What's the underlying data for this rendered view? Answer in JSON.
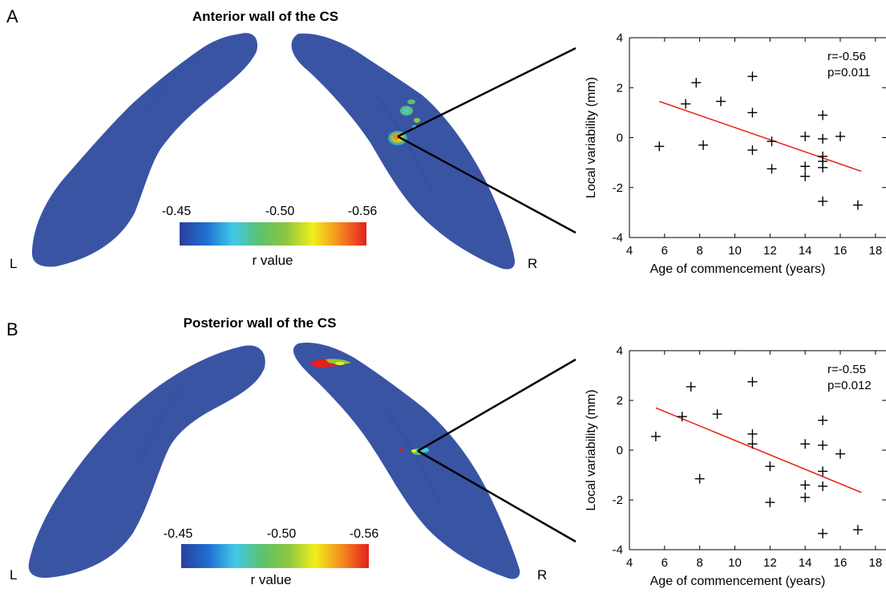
{
  "panels": [
    {
      "letter": "A",
      "title": "Anterior wall of the CS",
      "left_label": "L",
      "right_label": "R",
      "colorbar": {
        "ticks": [
          "-0.45",
          "-0.50",
          "-0.56"
        ],
        "label": "r value"
      }
    },
    {
      "letter": "B",
      "title": "Posterior wall of the CS",
      "left_label": "L",
      "right_label": "R",
      "colorbar": {
        "ticks": [
          "-0.45",
          "-0.50",
          "-0.56"
        ],
        "label": "r value"
      }
    }
  ],
  "colors": {
    "surface": "#3a54a4",
    "fit_line": "#e8291c",
    "colorbar": [
      "#2b3f9e",
      "#1f6fd0",
      "#41c8e8",
      "#5cc26e",
      "#8cc63f",
      "#f1ef1a",
      "#f58a1f",
      "#e3201e"
    ]
  },
  "chart_data": [
    {
      "type": "scatter",
      "title": "",
      "xlabel": "Age of commencement (years)",
      "ylabel": "Local variability (mm)",
      "xlim": [
        4,
        18.6
      ],
      "ylim": [
        -4,
        4
      ],
      "xticks": [
        "4",
        "6",
        "8",
        "10",
        "12",
        "14",
        "16",
        "18"
      ],
      "yticks": [
        "-4",
        "-2",
        "0",
        "2",
        "4"
      ],
      "annotation": [
        "r=-0.56",
        "p=0.011"
      ],
      "grid": false,
      "points": [
        {
          "x": 5.7,
          "y": -0.35
        },
        {
          "x": 7.2,
          "y": 1.35
        },
        {
          "x": 7.8,
          "y": 2.2
        },
        {
          "x": 8.2,
          "y": -0.3
        },
        {
          "x": 9.2,
          "y": 1.45
        },
        {
          "x": 11.0,
          "y": 2.45
        },
        {
          "x": 11.0,
          "y": 1.0
        },
        {
          "x": 11.0,
          "y": -0.5
        },
        {
          "x": 12.1,
          "y": -0.15
        },
        {
          "x": 12.1,
          "y": -1.25
        },
        {
          "x": 14.0,
          "y": 0.05
        },
        {
          "x": 14.0,
          "y": -1.15
        },
        {
          "x": 14.0,
          "y": -1.55
        },
        {
          "x": 15.0,
          "y": 0.9
        },
        {
          "x": 15.0,
          "y": -0.05
        },
        {
          "x": 15.0,
          "y": -0.75
        },
        {
          "x": 15.0,
          "y": -0.95
        },
        {
          "x": 15.0,
          "y": -1.2
        },
        {
          "x": 15.0,
          "y": -2.55
        },
        {
          "x": 16.0,
          "y": 0.05
        },
        {
          "x": 17.0,
          "y": -2.7
        }
      ],
      "fit": {
        "x": [
          5.7,
          17.2
        ],
        "y": [
          1.45,
          -1.35
        ]
      }
    },
    {
      "type": "scatter",
      "title": "",
      "xlabel": "Age of commencement (years)",
      "ylabel": "Local variability (mm)",
      "xlim": [
        4,
        18.6
      ],
      "ylim": [
        -4,
        4
      ],
      "xticks": [
        "4",
        "6",
        "8",
        "10",
        "12",
        "14",
        "16",
        "18"
      ],
      "yticks": [
        "-4",
        "-2",
        "0",
        "2",
        "4"
      ],
      "annotation": [
        "r=-0.55",
        "p=0.012"
      ],
      "grid": false,
      "points": [
        {
          "x": 5.5,
          "y": 0.55
        },
        {
          "x": 7.0,
          "y": 1.35
        },
        {
          "x": 7.5,
          "y": 2.55
        },
        {
          "x": 8.0,
          "y": -1.15
        },
        {
          "x": 9.0,
          "y": 1.45
        },
        {
          "x": 11.0,
          "y": 2.75
        },
        {
          "x": 11.0,
          "y": 0.65
        },
        {
          "x": 11.0,
          "y": 0.25
        },
        {
          "x": 12.0,
          "y": -0.65
        },
        {
          "x": 12.0,
          "y": -2.1
        },
        {
          "x": 14.0,
          "y": 0.25
        },
        {
          "x": 14.0,
          "y": -1.4
        },
        {
          "x": 14.0,
          "y": -1.9
        },
        {
          "x": 15.0,
          "y": 1.2
        },
        {
          "x": 15.0,
          "y": 0.2
        },
        {
          "x": 15.0,
          "y": -0.85
        },
        {
          "x": 15.0,
          "y": -1.45
        },
        {
          "x": 15.0,
          "y": -3.35
        },
        {
          "x": 16.0,
          "y": -0.15
        },
        {
          "x": 17.0,
          "y": -3.2
        }
      ],
      "fit": {
        "x": [
          5.5,
          17.2
        ],
        "y": [
          1.7,
          -1.7
        ]
      }
    }
  ]
}
